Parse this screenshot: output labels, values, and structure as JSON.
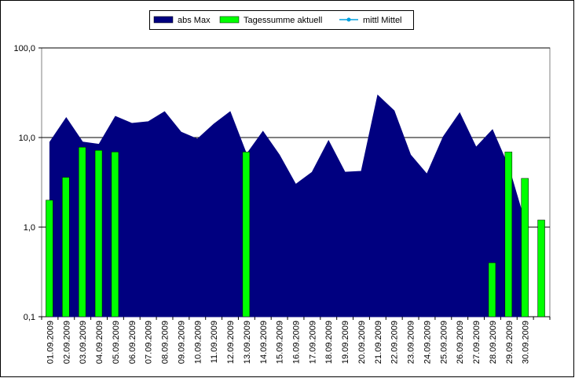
{
  "chart_data": {
    "type": "area-bar",
    "categories": [
      "01.09.2009",
      "02.09.2009",
      "03.09.2009",
      "04.09.2009",
      "05.09.2009",
      "06.09.2009",
      "07.09.2009",
      "08.09.2009",
      "09.09.2009",
      "10.09.2009",
      "11.09.2009",
      "12.09.2009",
      "13.09.2009",
      "14.09.2009",
      "15.09.2009",
      "16.09.2009",
      "17.09.2009",
      "18.09.2009",
      "19.09.2009",
      "20.09.2009",
      "21.09.2009",
      "22.09.2009",
      "23.09.2009",
      "24.09.2009",
      "25.09.2009",
      "26.09.2009",
      "27.09.2009",
      "28.09.2009",
      "29.09.2009",
      "30.09.2009",
      null
    ],
    "series": [
      {
        "name": "abs Max",
        "type": "area",
        "color": "#000080",
        "values": [
          8.9,
          16.6,
          8.9,
          8.4,
          17.2,
          14.4,
          15.0,
          19.4,
          11.5,
          9.6,
          14.1,
          19.4,
          6.5,
          11.7,
          6.4,
          3.0,
          4.1,
          9.2,
          4.1,
          4.2,
          29.6,
          19.9,
          6.4,
          3.9,
          10.2,
          18.8,
          7.8,
          12.2,
          4.6,
          1.1,
          null
        ]
      },
      {
        "name": "Tagessumme aktuell",
        "type": "bar",
        "color": "#00ff00",
        "values": [
          2.0,
          3.6,
          7.8,
          7.2,
          6.9,
          null,
          null,
          null,
          null,
          null,
          null,
          null,
          6.9,
          null,
          null,
          null,
          null,
          null,
          null,
          null,
          null,
          null,
          null,
          null,
          null,
          null,
          null,
          0.4,
          6.9,
          3.5,
          1.2
        ]
      },
      {
        "name": "mittl Mittel",
        "type": "line",
        "color": "#00a0e0",
        "values": [
          null,
          null,
          null,
          null,
          null,
          null,
          null,
          null,
          null,
          null,
          null,
          null,
          null,
          null,
          null,
          null,
          null,
          null,
          null,
          null,
          null,
          null,
          null,
          null,
          null,
          null,
          null,
          null,
          null,
          null,
          null
        ]
      }
    ],
    "ylim": [
      0.1,
      100
    ],
    "log_y": true,
    "yticks": [
      {
        "value": 0.1,
        "label": "0,1"
      },
      {
        "value": 1,
        "label": "1,0"
      },
      {
        "value": 10,
        "label": "10,0"
      },
      {
        "value": 100,
        "label": "100,0"
      }
    ],
    "grid": true,
    "legend": "top"
  }
}
